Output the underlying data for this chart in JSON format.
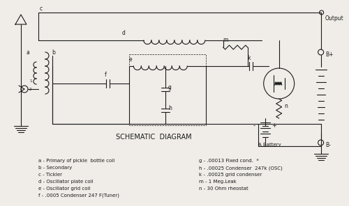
{
  "bg_color": "#f0ede8",
  "line_color": "#1a1a1a",
  "title": "SCHEMATIC  DIAGRAM",
  "output_label": "Output",
  "battery_label": "A Battery",
  "bplus_label": "B+",
  "bminus_label": "B-",
  "legend_left": [
    "a - Primary of pickle  bottle coil",
    "b - Secondary",
    "c - Tickler",
    "d - Oscillator plate coil",
    "e - Oscillator grid coil",
    "f - .0005 Condenser 247 F(Tuner)"
  ],
  "legend_right": [
    "g - .00013 Fixed cond.  *",
    "h - .00025 Condenser  247k (OSC)",
    "k - .00025 grid condenser",
    "m - 1 Meg.Leak",
    "n - 30 Ohm rheostat"
  ]
}
